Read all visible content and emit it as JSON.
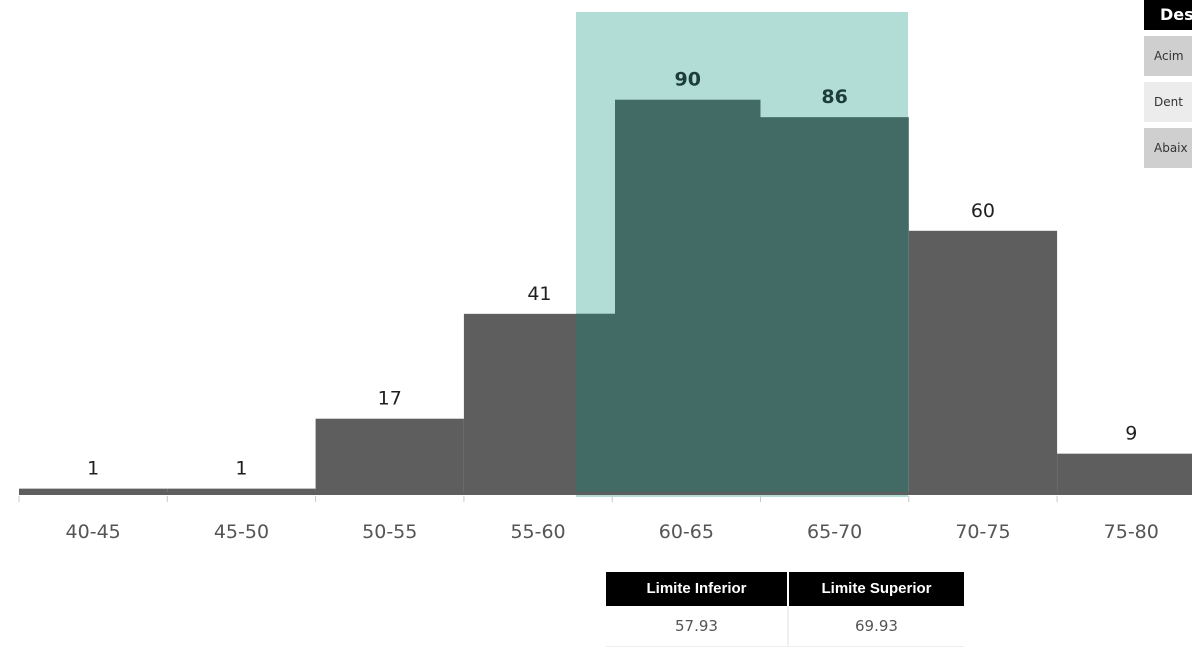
{
  "chart_data": {
    "type": "bar",
    "categories": [
      "40-45",
      "45-50",
      "50-55",
      "55-60",
      "60-65",
      "65-70",
      "70-75",
      "75-80"
    ],
    "values": [
      1,
      1,
      17,
      41,
      90,
      86,
      60,
      9
    ],
    "highlighted": [
      "60-65",
      "65-70"
    ],
    "ylim": [
      0,
      100
    ],
    "title": "",
    "xlabel": "",
    "ylabel": "",
    "grid": false,
    "colors": {
      "bar": "#5e5e5e",
      "bar_highlight": "#436b66",
      "band": "#b2dcd6",
      "band_edge": "#8fcac2"
    },
    "band_range": [
      57.93,
      69.93
    ]
  },
  "legend": {
    "title": "Des",
    "items": [
      "Acim",
      "Dent",
      "Abaix"
    ]
  },
  "limits": {
    "lower_label": "Limite Inferior",
    "upper_label": "Limite Superior",
    "lower_value": "57.93",
    "upper_value": "69.93"
  }
}
